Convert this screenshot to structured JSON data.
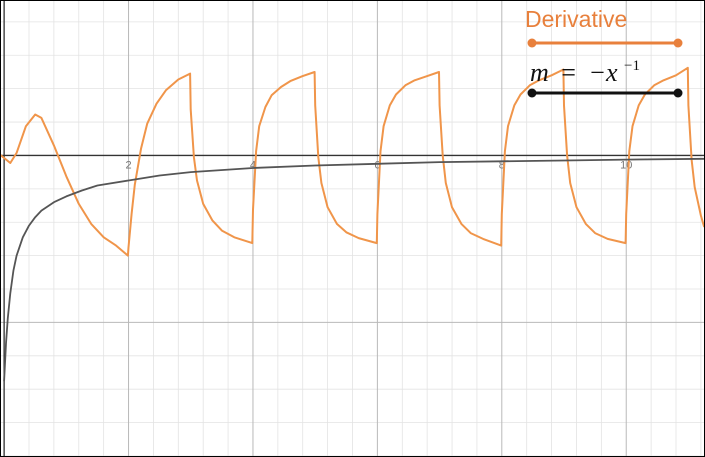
{
  "chart_data": {
    "type": "line",
    "title": "",
    "xlabel": "",
    "ylabel": "",
    "xlim": [
      -0.05,
      11.25
    ],
    "ylim": [
      -3.6,
      1.85
    ],
    "grid": true,
    "grid_minor_step": 0.4,
    "grid_major_step": 2,
    "x_ticks": [
      {
        "value": 2,
        "label": "2"
      },
      {
        "value": 4,
        "label": "4"
      },
      {
        "value": 6,
        "label": "6"
      },
      {
        "value": 8,
        "label": "8"
      },
      {
        "value": 10,
        "label": "10"
      }
    ],
    "legend_position": "top-right",
    "series": [
      {
        "name": "Derivative",
        "color": "#f0954a",
        "legend_color": "#e8803c",
        "x": [
          -0.05,
          0.1,
          0.2,
          0.35,
          0.5,
          0.6,
          0.8,
          1.0,
          1.2,
          1.4,
          1.6,
          1.8,
          1.99,
          2.0,
          2.05,
          2.1,
          2.2,
          2.3,
          2.45,
          2.6,
          2.8,
          2.99,
          3.0,
          3.05,
          3.1,
          3.2,
          3.35,
          3.5,
          3.7,
          3.99,
          4.0,
          4.05,
          4.1,
          4.2,
          4.3,
          4.45,
          4.6,
          4.8,
          4.99,
          5.0,
          5.05,
          5.1,
          5.2,
          5.35,
          5.5,
          5.7,
          5.99,
          6.0,
          6.05,
          6.1,
          6.2,
          6.3,
          6.45,
          6.6,
          6.8,
          6.99,
          7.0,
          7.05,
          7.1,
          7.2,
          7.35,
          7.5,
          7.7,
          7.99,
          8.0,
          8.05,
          8.1,
          8.2,
          8.3,
          8.45,
          8.6,
          8.8,
          8.99,
          9.0,
          9.05,
          9.1,
          9.2,
          9.35,
          9.5,
          9.7,
          9.99,
          10.0,
          10.05,
          10.1,
          10.2,
          10.3,
          10.45,
          10.6,
          10.8,
          10.99,
          11.0,
          11.05,
          11.1,
          11.2,
          11.25
        ],
        "y": [
          0.0,
          -0.09,
          0.03,
          0.35,
          0.49,
          0.45,
          0.12,
          -0.25,
          -0.58,
          -0.82,
          -0.98,
          -1.08,
          -1.2,
          -1.1,
          -0.7,
          -0.35,
          0.08,
          0.38,
          0.62,
          0.78,
          0.91,
          0.98,
          0.55,
          -0.02,
          -0.3,
          -0.58,
          -0.78,
          -0.9,
          -0.98,
          -1.05,
          -0.65,
          0.05,
          0.35,
          0.58,
          0.72,
          0.82,
          0.89,
          0.95,
          1.0,
          0.6,
          -0.02,
          -0.33,
          -0.62,
          -0.82,
          -0.92,
          -0.99,
          -1.05,
          -0.7,
          0.05,
          0.35,
          0.6,
          0.73,
          0.84,
          0.9,
          0.95,
          1.0,
          0.6,
          0.0,
          -0.33,
          -0.62,
          -0.82,
          -0.93,
          -1.0,
          -1.08,
          -0.7,
          0.05,
          0.35,
          0.6,
          0.73,
          0.84,
          0.9,
          0.96,
          1.03,
          0.6,
          0.0,
          -0.33,
          -0.62,
          -0.82,
          -0.93,
          -1.0,
          -1.05,
          -0.7,
          0.05,
          0.35,
          0.6,
          0.73,
          0.84,
          0.9,
          0.96,
          1.05,
          0.6,
          -0.05,
          -0.38,
          -0.72,
          -0.85
        ]
      },
      {
        "name_parts": {
          "lhs": "m",
          "equals": "=",
          "rhs": "−x",
          "exponent": "−1"
        },
        "color": "#555555",
        "legend_color": "#111111",
        "function": "-1/x",
        "x": [
          0.0,
          0.03,
          0.06,
          0.1,
          0.15,
          0.2,
          0.3,
          0.4,
          0.5,
          0.6,
          0.8,
          1.0,
          1.25,
          1.5,
          2.0,
          2.5,
          3.0,
          4.0,
          5.0,
          6.0,
          7.0,
          8.0,
          9.0,
          10.0,
          11.25
        ],
        "y": [
          -2.7,
          -2.25,
          -1.95,
          -1.65,
          -1.38,
          -1.2,
          -0.98,
          -0.84,
          -0.74,
          -0.66,
          -0.56,
          -0.49,
          -0.42,
          -0.36,
          -0.3,
          -0.24,
          -0.2,
          -0.15,
          -0.12,
          -0.1,
          -0.08,
          -0.07,
          -0.06,
          -0.05,
          -0.04
        ]
      }
    ]
  }
}
